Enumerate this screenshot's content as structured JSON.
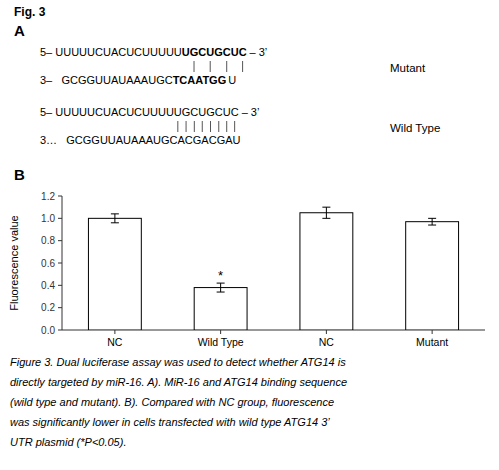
{
  "chart_data": {
    "type": "bar",
    "categories": [
      "NC",
      "Wild Type",
      "NC",
      "Mutant"
    ],
    "values": [
      1.0,
      0.38,
      1.05,
      0.97
    ],
    "errors": [
      0.04,
      0.04,
      0.05,
      0.03
    ],
    "color": "#ffffff",
    "y_label": "Fluorescence value",
    "ylim": [
      0,
      1.2
    ],
    "yticks": [
      {
        "value": 0,
        "label": "0.0"
      },
      0.2,
      0.4,
      0.6,
      0.8,
      {
        "value": 1.0,
        "label": "1.0"
      },
      1.2
    ],
    "grid": false,
    "annotations": [
      "Fig. 3",
      "A",
      "5– UUUUUCUACUCUUUUU",
      "UGCUGCUC",
      "– 3’",
      "Mutant",
      "3–   GCGGUUAUAAAUGC",
      "TCAATGG",
      "U",
      "5– UUUUUCUACUCUUUUUGCUGCUC – 3’",
      "Wild Type",
      "3…   GCGGUUAUAAAUGCACGACGAU",
      "B",
      {
        "text": "*",
        "bar": 1
      },
      "Figure 3. Dual luciferase assay was used to detect whether ATG14 is",
      "directly targeted by miR-16. A). MiR-16 and ATG14 binding sequence",
      "(wild type and mutant). B). Compared with NC group, fluorescence",
      "was significantly lower in cells transfected with wild type ATG14 3’",
      "UTR plasmid (*P<0.05)."
    ]
  }
}
